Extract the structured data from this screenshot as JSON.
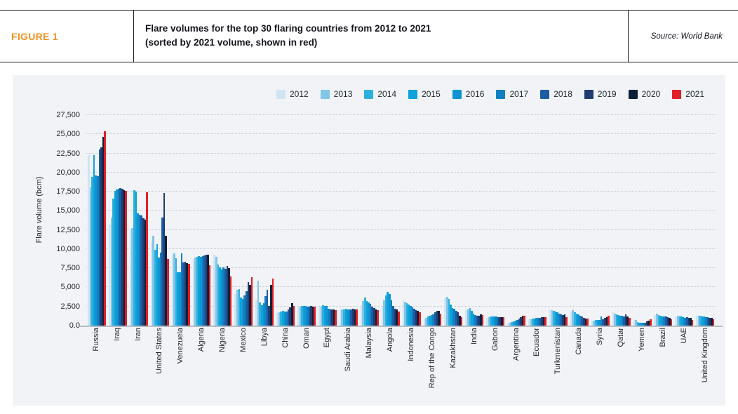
{
  "header": {
    "figure_label": "FIGURE 1",
    "title_line1": "Flare volumes for the top 30 flaring countries from 2012 to 2021",
    "title_line2": "(sorted by 2021 volume, shown in red)",
    "source": "Source: World Bank"
  },
  "colors": {
    "accent_orange": "#f5911e",
    "panel_background": "#f1f3f6",
    "highlight_red": "#e01f26",
    "gridline": "#c2c8cf",
    "baseline": "#b7bcc3"
  },
  "chart_data": {
    "type": "bar",
    "title": "Flare volumes for the top 30 flaring countries from 2012 to 2021 (sorted by 2021 volume, shown in red)",
    "xlabel": "",
    "ylabel": "Flare volume (bcm)",
    "ylim": [
      0,
      27500
    ],
    "yticks": [
      0,
      2500,
      5000,
      7500,
      10000,
      12500,
      15000,
      17500,
      20000,
      22500,
      25000,
      27500
    ],
    "grid": "horizontal-dotted",
    "legend_position": "top-right",
    "categories": [
      "Russia",
      "Iraq",
      "Iran",
      "United States",
      "Venezuela",
      "Algeria",
      "Nigeria",
      "Mexico",
      "Libya",
      "China",
      "Oman",
      "Egypt",
      "Saudi Arabia",
      "Malaysia",
      "Angola",
      "Indonesia",
      "Rep of the Congo",
      "Kazakhstan",
      "India",
      "Gabon",
      "Argentina",
      "Ecuador",
      "Turkmenistan",
      "Canada",
      "Syria",
      "Qatar",
      "Yemen",
      "Brazil",
      "UAE",
      "United Kingdom"
    ],
    "series": [
      {
        "name": "2012",
        "color": "#cfe5f2",
        "values": [
          22300,
          13200,
          12500,
          11000,
          9250,
          8700,
          9300,
          4100,
          3300,
          1650,
          2400,
          2500,
          2050,
          2500,
          2600,
          3350,
          950,
          3700,
          2000,
          1050,
          350,
          800,
          2150,
          1850,
          600,
          1700,
          800,
          1400,
          1100,
          1250
        ]
      },
      {
        "name": "2013",
        "color": "#82c5e8",
        "values": [
          18100,
          14100,
          12700,
          11700,
          9450,
          8900,
          8950,
          4700,
          5900,
          1750,
          2500,
          2600,
          2100,
          3200,
          3300,
          3150,
          1050,
          3800,
          2150,
          1100,
          400,
          850,
          2050,
          2000,
          650,
          1600,
          700,
          1550,
          1250,
          1300
        ]
      },
      {
        "name": "2014",
        "color": "#2eb0df",
        "values": [
          19400,
          16550,
          17700,
          9900,
          8800,
          9000,
          8000,
          4800,
          3000,
          1850,
          2550,
          2650,
          2150,
          3650,
          3950,
          2950,
          1150,
          3500,
          2300,
          1150,
          450,
          900,
          1900,
          1750,
          700,
          1500,
          500,
          1350,
          1200,
          1250
        ]
      },
      {
        "name": "2015",
        "color": "#0da2dc",
        "values": [
          22300,
          17600,
          17500,
          10600,
          7000,
          9100,
          7650,
          3650,
          2650,
          1950,
          2600,
          2600,
          2200,
          3250,
          4400,
          2750,
          1300,
          2750,
          1900,
          1150,
          550,
          950,
          1800,
          1600,
          700,
          1400,
          400,
          1250,
          1150,
          1200
        ]
      },
      {
        "name": "2016",
        "color": "#0d95d3",
        "values": [
          19600,
          17750,
          14700,
          8900,
          6950,
          9000,
          7350,
          3500,
          2950,
          1850,
          2550,
          2550,
          2150,
          3000,
          4100,
          2550,
          1350,
          2300,
          1600,
          1150,
          650,
          1000,
          1700,
          1450,
          750,
          1300,
          350,
          1200,
          1100,
          1150
        ]
      },
      {
        "name": "2017",
        "color": "#1080c2",
        "values": [
          19500,
          17850,
          14500,
          9500,
          9400,
          9100,
          7600,
          3900,
          3850,
          1800,
          2500,
          2200,
          2100,
          2800,
          3300,
          2350,
          1450,
          2200,
          1350,
          1150,
          750,
          1000,
          1600,
          1300,
          1150,
          1250,
          350,
          1200,
          1050,
          1100
        ]
      },
      {
        "name": "2018",
        "color": "#1b5ca3",
        "values": [
          23000,
          17950,
          14400,
          14100,
          8250,
          9200,
          7450,
          4450,
          4700,
          2150,
          2450,
          2150,
          2150,
          2500,
          2600,
          2200,
          1750,
          1900,
          1300,
          1100,
          900,
          1050,
          1450,
          1150,
          800,
          1200,
          400,
          1150,
          1100,
          1100
        ]
      },
      {
        "name": "2019",
        "color": "#203d73",
        "values": [
          23300,
          17850,
          14000,
          17300,
          8300,
          9300,
          7800,
          5700,
          2600,
          2400,
          2550,
          2150,
          2200,
          2250,
          2200,
          2050,
          1950,
          1700,
          1250,
          1100,
          1100,
          1100,
          1350,
          1000,
          1050,
          1450,
          550,
          1100,
          1050,
          1050
        ]
      },
      {
        "name": "2020",
        "color": "#0e2038",
        "values": [
          24700,
          17700,
          13800,
          11700,
          8200,
          9250,
          7500,
          5300,
          5350,
          2950,
          2500,
          2100,
          2150,
          2150,
          2100,
          1900,
          1900,
          1300,
          1450,
          1100,
          1250,
          1100,
          1500,
          950,
          1100,
          1200,
          650,
          1050,
          1000,
          1000
        ]
      },
      {
        "name": "2021",
        "color": "#e01f26",
        "values": [
          25400,
          17600,
          17400,
          8700,
          8100,
          7900,
          6400,
          6300,
          6100,
          2550,
          2500,
          2050,
          2100,
          2050,
          1850,
          1700,
          1600,
          1100,
          1350,
          1100,
          1300,
          1070,
          1100,
          900,
          1250,
          1000,
          850,
          800,
          720,
          780
        ]
      }
    ]
  }
}
